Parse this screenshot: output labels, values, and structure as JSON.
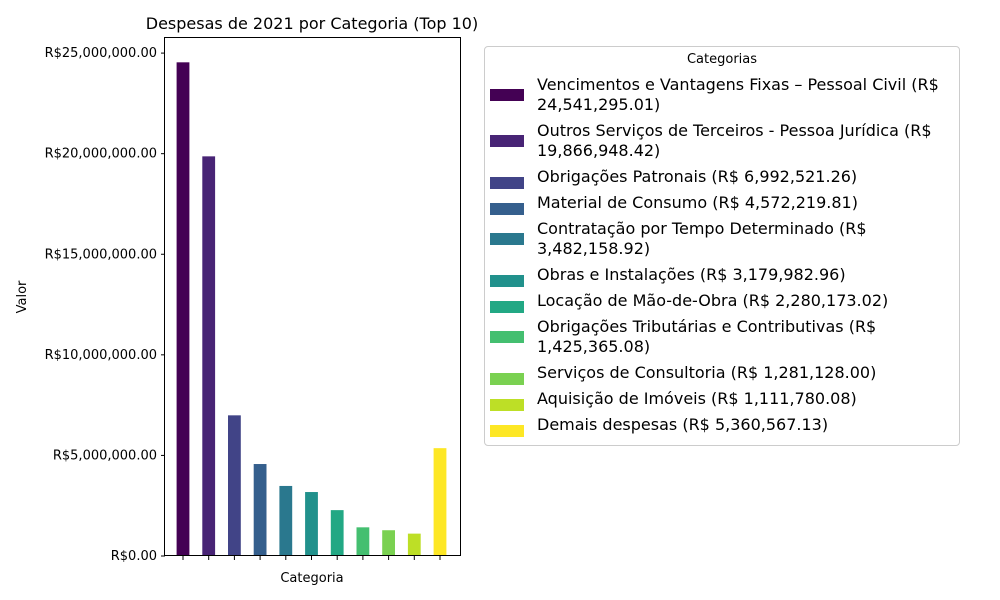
{
  "chart_data": {
    "type": "bar",
    "title": "Despesas de 2021 por Categoria (Top 10)",
    "xlabel": "Categoria",
    "ylabel": "Valor",
    "ylim": [
      0,
      25800000
    ],
    "yticks": [
      {
        "value": 0,
        "label": "R$0.00"
      },
      {
        "value": 5000000,
        "label": "R$5,000,000.00"
      },
      {
        "value": 10000000,
        "label": "R$10,000,000.00"
      },
      {
        "value": 15000000,
        "label": "R$15,000,000.00"
      },
      {
        "value": 20000000,
        "label": "R$20,000,000.00"
      },
      {
        "value": 25000000,
        "label": "R$25,000,000.00"
      }
    ],
    "grid": false,
    "legend_title": "Categorias",
    "legend_placement": "outside-right",
    "categories": [
      "Vencimentos e Vantagens Fixas – Pessoal Civil",
      "Outros Serviços de Terceiros - Pessoa Jurídica",
      "Obrigações Patronais",
      "Material de Consumo",
      "Contratação por Tempo Determinado",
      "Obras e Instalações",
      "Locação de Mão-de-Obra",
      "Obrigações Tributárias e Contributivas",
      "Serviços de Consultoria",
      "Aquisição de Imóveis",
      "Demais despesas"
    ],
    "values": [
      24541295.01,
      19866948.42,
      6992521.26,
      4572219.81,
      3482158.92,
      3179982.96,
      2280173.02,
      1425365.08,
      1281128.0,
      1111780.08,
      5360567.13
    ],
    "legend_labels": [
      [
        "Vencimentos e Vantagens Fixas – Pessoal Civil (R$",
        "24,541,295.01)"
      ],
      [
        "Outros Serviços de Terceiros - Pessoa Jurídica (R$",
        "19,866,948.42)"
      ],
      [
        "Obrigações Patronais (R$ 6,992,521.26)"
      ],
      [
        "Material de Consumo (R$ 4,572,219.81)"
      ],
      [
        "Contratação por Tempo Determinado (R$",
        "3,482,158.92)"
      ],
      [
        "Obras e Instalações (R$ 3,179,982.96)"
      ],
      [
        "Locação de Mão-de-Obra (R$ 2,280,173.02)"
      ],
      [
        "Obrigações Tributárias e Contributivas (R$",
        "1,425,365.08)"
      ],
      [
        "Serviços de Consultoria (R$ 1,281,128.00)"
      ],
      [
        "Aquisição de Imóveis (R$ 1,111,780.08)"
      ],
      [
        "Demais despesas (R$ 5,360,567.13)"
      ]
    ],
    "colors": [
      "#440154",
      "#482475",
      "#414487",
      "#355f8d",
      "#2a788e",
      "#21918c",
      "#22a884",
      "#44bf70",
      "#7ad151",
      "#bddf26",
      "#fde725"
    ]
  }
}
